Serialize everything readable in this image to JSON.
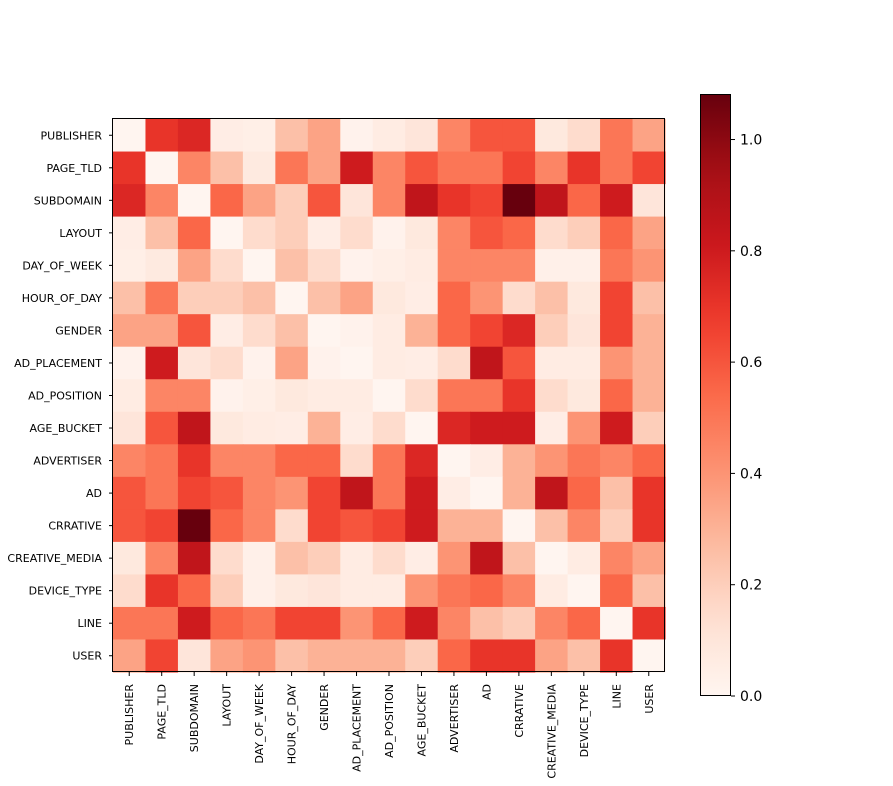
{
  "chart_data": {
    "type": "heatmap",
    "title": "",
    "xlabel": "",
    "ylabel": "",
    "labels": [
      "PUBLISHER",
      "PAGE_TLD",
      "SUBDOMAIN",
      "LAYOUT",
      "DAY_OF_WEEK",
      "HOUR_OF_DAY",
      "GENDER",
      "AD_PLACEMENT",
      "AD_POSITION",
      "AGE_BUCKET",
      "ADVERTISER",
      "AD",
      "CRRATIVE",
      "CREATIVE_MEDIA",
      "DEVICE_TYPE",
      "LINE",
      "USER"
    ],
    "values": [
      [
        0.0,
        0.7,
        0.75,
        0.05,
        0.04,
        0.25,
        0.35,
        0.02,
        0.06,
        0.1,
        0.45,
        0.6,
        0.6,
        0.08,
        0.15,
        0.5,
        0.35
      ],
      [
        0.7,
        0.0,
        0.45,
        0.25,
        0.07,
        0.5,
        0.35,
        0.8,
        0.45,
        0.6,
        0.5,
        0.5,
        0.65,
        0.45,
        0.7,
        0.5,
        0.65
      ],
      [
        0.75,
        0.45,
        0.0,
        0.55,
        0.35,
        0.2,
        0.6,
        0.1,
        0.45,
        0.85,
        0.7,
        0.65,
        1.08,
        0.85,
        0.55,
        0.8,
        0.1
      ],
      [
        0.05,
        0.25,
        0.55,
        0.0,
        0.15,
        0.2,
        0.05,
        0.15,
        0.02,
        0.08,
        0.45,
        0.6,
        0.55,
        0.15,
        0.2,
        0.55,
        0.35
      ],
      [
        0.04,
        0.07,
        0.35,
        0.15,
        0.0,
        0.25,
        0.15,
        0.02,
        0.04,
        0.06,
        0.45,
        0.45,
        0.45,
        0.03,
        0.03,
        0.5,
        0.4
      ],
      [
        0.25,
        0.5,
        0.2,
        0.2,
        0.25,
        0.0,
        0.25,
        0.35,
        0.08,
        0.05,
        0.55,
        0.4,
        0.15,
        0.25,
        0.08,
        0.65,
        0.25
      ],
      [
        0.35,
        0.35,
        0.6,
        0.05,
        0.15,
        0.25,
        0.0,
        0.02,
        0.06,
        0.3,
        0.55,
        0.65,
        0.75,
        0.2,
        0.1,
        0.65,
        0.3
      ],
      [
        0.02,
        0.8,
        0.1,
        0.15,
        0.02,
        0.35,
        0.02,
        0.0,
        0.06,
        0.05,
        0.15,
        0.85,
        0.6,
        0.06,
        0.06,
        0.4,
        0.3
      ],
      [
        0.06,
        0.45,
        0.45,
        0.02,
        0.04,
        0.08,
        0.06,
        0.06,
        0.0,
        0.15,
        0.5,
        0.5,
        0.7,
        0.15,
        0.08,
        0.55,
        0.3
      ],
      [
        0.1,
        0.6,
        0.85,
        0.08,
        0.06,
        0.05,
        0.3,
        0.05,
        0.15,
        0.0,
        0.75,
        0.8,
        0.8,
        0.05,
        0.4,
        0.8,
        0.2
      ],
      [
        0.45,
        0.5,
        0.7,
        0.45,
        0.45,
        0.55,
        0.55,
        0.15,
        0.5,
        0.75,
        0.0,
        0.05,
        0.3,
        0.4,
        0.5,
        0.45,
        0.55
      ],
      [
        0.6,
        0.5,
        0.65,
        0.6,
        0.45,
        0.4,
        0.65,
        0.85,
        0.5,
        0.8,
        0.05,
        0.0,
        0.3,
        0.85,
        0.55,
        0.25,
        0.7
      ],
      [
        0.6,
        0.65,
        1.08,
        0.55,
        0.45,
        0.15,
        0.65,
        0.6,
        0.65,
        0.8,
        0.3,
        0.3,
        0.0,
        0.25,
        0.45,
        0.2,
        0.7
      ],
      [
        0.08,
        0.45,
        0.85,
        0.15,
        0.03,
        0.25,
        0.2,
        0.06,
        0.15,
        0.05,
        0.4,
        0.85,
        0.25,
        0.0,
        0.06,
        0.45,
        0.35
      ],
      [
        0.15,
        0.7,
        0.55,
        0.2,
        0.03,
        0.08,
        0.1,
        0.06,
        0.06,
        0.4,
        0.5,
        0.55,
        0.45,
        0.06,
        0.0,
        0.55,
        0.25
      ],
      [
        0.5,
        0.5,
        0.8,
        0.55,
        0.5,
        0.65,
        0.65,
        0.4,
        0.55,
        0.8,
        0.45,
        0.25,
        0.2,
        0.45,
        0.55,
        0.0,
        0.7
      ],
      [
        0.35,
        0.65,
        0.1,
        0.35,
        0.4,
        0.25,
        0.3,
        0.3,
        0.3,
        0.2,
        0.55,
        0.7,
        0.7,
        0.35,
        0.25,
        0.7,
        0.0
      ]
    ],
    "colormap": "Reds",
    "vmin": 0.0,
    "vmax": 1.08,
    "colorbar_ticks": [
      "0.0",
      "0.2",
      "0.4",
      "0.6",
      "0.8",
      "1.0"
    ],
    "grid": false,
    "legend": "colorbar-right"
  }
}
